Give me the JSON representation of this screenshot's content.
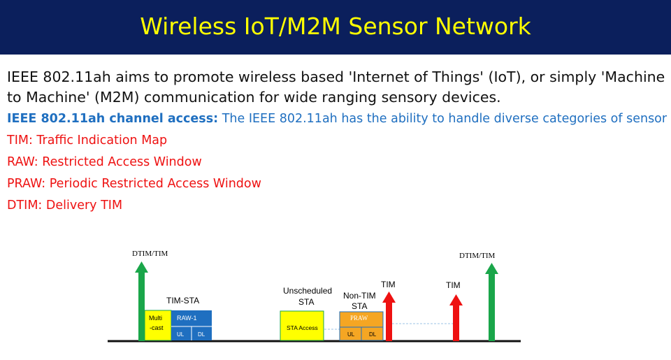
{
  "header": {
    "title": "Wireless IoT/M2M Sensor Network"
  },
  "intro": "IEEE 802.11ah aims to promote wireless based 'Internet of Things' (IoT), or simply 'Machine to Machine' (M2M) communication for wide ranging sensory devices.",
  "channel_access": {
    "label": "IEEE 802.11ah channel access:",
    "text": " The IEEE 802.11ah has the ability to handle diverse categories of sensor data."
  },
  "definitions": [
    "TIM: Traffic Indication Map",
    "RAW: Restricted Access Window",
    "PRAW: Periodic Restricted Access Window",
    "DTIM: Delivery TIM"
  ],
  "diagram": {
    "dtim_left": "DTIM/TIM",
    "dtim_right": "DTIM/TIM",
    "tim_sta": "TIM-STA",
    "multicast_1": "Multi",
    "multicast_2": "-cast",
    "raw1": "RAW-1",
    "ul1": "UL",
    "dl1": "DL",
    "unscheduled_1": "Unscheduled",
    "unscheduled_2": "STA",
    "sta_access": "STA Access",
    "non_tim_1": "Non-TIM",
    "non_tim_2": "STA",
    "praw": "PRAW",
    "ul2": "UL",
    "dl2": "DL",
    "tim1": "TIM",
    "tim2": "TIM",
    "colors": {
      "green": "#1aa64a",
      "red": "#ee1111",
      "blue": "#1f6fc0",
      "yellow": "#ffff00",
      "orange": "#f5a623"
    }
  }
}
